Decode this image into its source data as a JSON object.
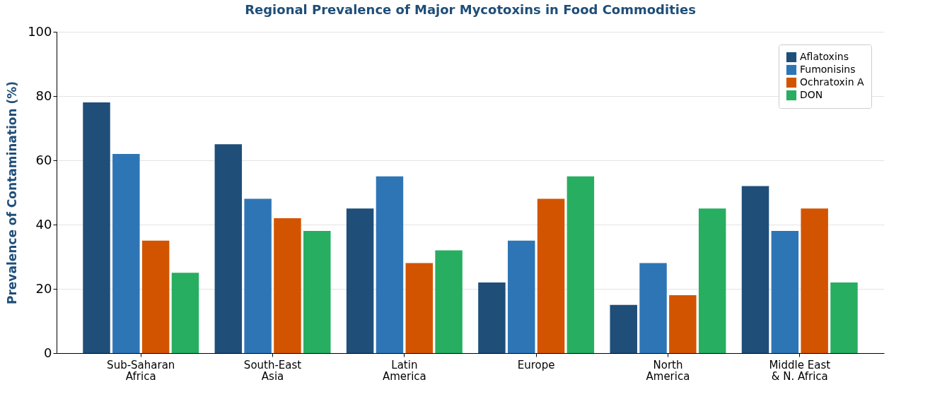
{
  "chart_data": {
    "type": "bar",
    "title": "Regional Prevalence of Major Mycotoxins in Food Commodities",
    "ylabel": "Prevalence of Contamination (%)",
    "categories": [
      "Sub-Saharan\nAfrica",
      "South-East\nAsia",
      "Latin\nAmerica",
      "Europe",
      "North\nAmerica",
      "Middle East\n& N. Africa"
    ],
    "series": [
      {
        "name": "Aflatoxins",
        "color": "#1f4e79",
        "values": [
          78,
          65,
          45,
          22,
          15,
          52
        ]
      },
      {
        "name": "Fumonisins",
        "color": "#2e75b6",
        "values": [
          62,
          48,
          55,
          35,
          28,
          38
        ]
      },
      {
        "name": "Ochratoxin A",
        "color": "#d35400",
        "values": [
          35,
          42,
          28,
          48,
          18,
          45
        ]
      },
      {
        "name": "DON",
        "color": "#27ae60",
        "values": [
          25,
          38,
          32,
          55,
          45,
          22
        ]
      }
    ],
    "ylim": [
      0,
      100
    ],
    "yticks": [
      0,
      20,
      40,
      60,
      80,
      100
    ],
    "grid": "y",
    "legend": "top right"
  }
}
